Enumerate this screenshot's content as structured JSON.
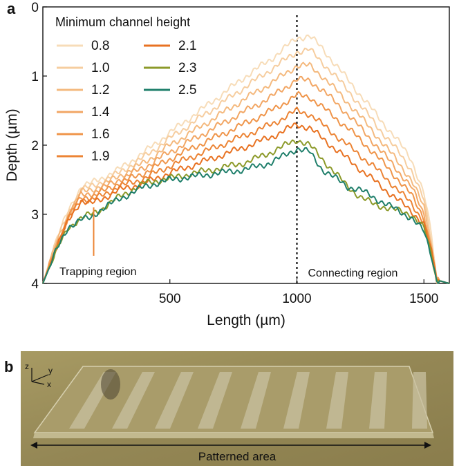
{
  "panel_a": {
    "letter": "a"
  },
  "panel_b": {
    "letter": "b",
    "caption": "Patterned area",
    "axes": {
      "z": "z",
      "y": "y",
      "x": "x"
    }
  },
  "chart_data": {
    "type": "line",
    "title": "",
    "xlabel": "Length (µm)",
    "ylabel": "Depth (µm)",
    "xlim": [
      0,
      1600
    ],
    "ylim": [
      4,
      0
    ],
    "y_inverted": true,
    "x_ticks": [
      500,
      1000,
      1500
    ],
    "y_ticks": [
      0,
      1,
      2,
      3,
      4
    ],
    "legend_title": "Minimum channel height",
    "divider_x": 1000,
    "region_labels": {
      "left": "Trapping region",
      "right": "Connecting region"
    },
    "series": [
      {
        "name": "0.8",
        "color": "#f7dcb8",
        "points": [
          [
            0,
            4.0
          ],
          [
            50,
            3.4
          ],
          [
            100,
            2.95
          ],
          [
            150,
            2.6
          ],
          [
            190,
            2.55
          ],
          [
            220,
            2.5
          ],
          [
            300,
            2.35
          ],
          [
            400,
            2.1
          ],
          [
            500,
            1.82
          ],
          [
            600,
            1.55
          ],
          [
            700,
            1.28
          ],
          [
            800,
            1.0
          ],
          [
            900,
            0.75
          ],
          [
            1000,
            0.45
          ],
          [
            1050,
            0.42
          ],
          [
            1100,
            0.6
          ],
          [
            1200,
            1.05
          ],
          [
            1300,
            1.5
          ],
          [
            1400,
            1.95
          ],
          [
            1450,
            2.2
          ],
          [
            1500,
            2.7
          ],
          [
            1530,
            3.3
          ],
          [
            1550,
            3.95
          ],
          [
            1600,
            4.0
          ]
        ]
      },
      {
        "name": "1.0",
        "color": "#f6cd9f",
        "points": [
          [
            0,
            4.0
          ],
          [
            50,
            3.42
          ],
          [
            100,
            2.98
          ],
          [
            150,
            2.65
          ],
          [
            190,
            2.6
          ],
          [
            220,
            2.55
          ],
          [
            300,
            2.4
          ],
          [
            400,
            2.17
          ],
          [
            500,
            1.9
          ],
          [
            600,
            1.65
          ],
          [
            700,
            1.4
          ],
          [
            800,
            1.15
          ],
          [
            900,
            0.9
          ],
          [
            1000,
            0.65
          ],
          [
            1050,
            0.62
          ],
          [
            1100,
            0.8
          ],
          [
            1200,
            1.2
          ],
          [
            1300,
            1.65
          ],
          [
            1400,
            2.1
          ],
          [
            1450,
            2.35
          ],
          [
            1500,
            2.8
          ],
          [
            1530,
            3.4
          ],
          [
            1550,
            3.95
          ],
          [
            1600,
            4.0
          ]
        ]
      },
      {
        "name": "1.2",
        "color": "#f4b97e",
        "points": [
          [
            0,
            4.0
          ],
          [
            50,
            3.45
          ],
          [
            100,
            3.0
          ],
          [
            150,
            2.68
          ],
          [
            190,
            2.65
          ],
          [
            220,
            2.6
          ],
          [
            300,
            2.45
          ],
          [
            400,
            2.25
          ],
          [
            500,
            2.0
          ],
          [
            600,
            1.78
          ],
          [
            700,
            1.55
          ],
          [
            800,
            1.32
          ],
          [
            900,
            1.1
          ],
          [
            1000,
            0.85
          ],
          [
            1050,
            0.85
          ],
          [
            1100,
            1.0
          ],
          [
            1200,
            1.38
          ],
          [
            1300,
            1.8
          ],
          [
            1400,
            2.25
          ],
          [
            1450,
            2.5
          ],
          [
            1500,
            2.9
          ],
          [
            1530,
            3.45
          ],
          [
            1550,
            3.95
          ],
          [
            1600,
            4.0
          ]
        ]
      },
      {
        "name": "1.4",
        "color": "#f2a664",
        "points": [
          [
            0,
            4.0
          ],
          [
            50,
            3.48
          ],
          [
            100,
            3.02
          ],
          [
            150,
            2.72
          ],
          [
            190,
            2.7
          ],
          [
            220,
            2.65
          ],
          [
            300,
            2.5
          ],
          [
            400,
            2.32
          ],
          [
            500,
            2.1
          ],
          [
            600,
            1.9
          ],
          [
            700,
            1.7
          ],
          [
            800,
            1.5
          ],
          [
            900,
            1.3
          ],
          [
            1000,
            1.05
          ],
          [
            1050,
            1.07
          ],
          [
            1100,
            1.2
          ],
          [
            1200,
            1.55
          ],
          [
            1300,
            1.95
          ],
          [
            1400,
            2.38
          ],
          [
            1450,
            2.6
          ],
          [
            1500,
            3.0
          ],
          [
            1530,
            3.5
          ],
          [
            1550,
            3.95
          ],
          [
            1600,
            4.0
          ]
        ]
      },
      {
        "name": "1.6",
        "color": "#ef9449",
        "points": [
          [
            0,
            4.0
          ],
          [
            50,
            3.5
          ],
          [
            100,
            3.05
          ],
          [
            150,
            2.75
          ],
          [
            190,
            2.75
          ],
          [
            220,
            2.7
          ],
          [
            300,
            2.55
          ],
          [
            400,
            2.4
          ],
          [
            500,
            2.2
          ],
          [
            600,
            2.02
          ],
          [
            700,
            1.85
          ],
          [
            800,
            1.68
          ],
          [
            900,
            1.5
          ],
          [
            1000,
            1.28
          ],
          [
            1050,
            1.3
          ],
          [
            1100,
            1.45
          ],
          [
            1200,
            1.75
          ],
          [
            1300,
            2.1
          ],
          [
            1400,
            2.5
          ],
          [
            1450,
            2.72
          ],
          [
            1500,
            3.05
          ],
          [
            1530,
            3.5
          ],
          [
            1550,
            3.95
          ],
          [
            1600,
            4.0
          ]
        ]
      },
      {
        "name": "1.9",
        "color": "#ec8435",
        "points": [
          [
            0,
            4.0
          ],
          [
            50,
            3.5
          ],
          [
            100,
            3.08
          ],
          [
            150,
            2.78
          ],
          [
            190,
            2.8
          ],
          [
            220,
            2.75
          ],
          [
            300,
            2.6
          ],
          [
            400,
            2.48
          ],
          [
            500,
            2.3
          ],
          [
            600,
            2.15
          ],
          [
            700,
            2.0
          ],
          [
            800,
            1.85
          ],
          [
            900,
            1.7
          ],
          [
            1000,
            1.5
          ],
          [
            1050,
            1.55
          ],
          [
            1100,
            1.7
          ],
          [
            1200,
            2.0
          ],
          [
            1300,
            2.3
          ],
          [
            1400,
            2.65
          ],
          [
            1450,
            2.85
          ],
          [
            1500,
            3.1
          ],
          [
            1530,
            3.55
          ],
          [
            1550,
            3.95
          ],
          [
            1600,
            4.0
          ]
        ]
      },
      {
        "name": "2.1",
        "color": "#e87222",
        "points": [
          [
            0,
            4.0
          ],
          [
            50,
            3.5
          ],
          [
            100,
            3.1
          ],
          [
            150,
            2.8
          ],
          [
            190,
            2.85
          ],
          [
            220,
            2.8
          ],
          [
            300,
            2.65
          ],
          [
            400,
            2.55
          ],
          [
            500,
            2.4
          ],
          [
            600,
            2.28
          ],
          [
            700,
            2.15
          ],
          [
            800,
            2.02
          ],
          [
            900,
            1.88
          ],
          [
            1000,
            1.7
          ],
          [
            1050,
            1.75
          ],
          [
            1100,
            1.9
          ],
          [
            1200,
            2.2
          ],
          [
            1300,
            2.5
          ],
          [
            1400,
            2.8
          ],
          [
            1450,
            2.95
          ],
          [
            1500,
            3.15
          ],
          [
            1530,
            3.55
          ],
          [
            1550,
            3.95
          ],
          [
            1600,
            4.0
          ]
        ]
      },
      {
        "name": "2.3",
        "color": "#8c9a2a",
        "points": [
          [
            0,
            4.0
          ],
          [
            50,
            3.55
          ],
          [
            100,
            3.2
          ],
          [
            150,
            3.05
          ],
          [
            190,
            3.0
          ],
          [
            220,
            2.95
          ],
          [
            300,
            2.75
          ],
          [
            400,
            2.55
          ],
          [
            500,
            2.48
          ],
          [
            600,
            2.4
          ],
          [
            700,
            2.33
          ],
          [
            800,
            2.25
          ],
          [
            900,
            2.1
          ],
          [
            1000,
            1.92
          ],
          [
            1050,
            2.0
          ],
          [
            1100,
            2.2
          ],
          [
            1200,
            2.6
          ],
          [
            1250,
            2.75
          ],
          [
            1300,
            2.85
          ],
          [
            1400,
            2.95
          ],
          [
            1450,
            3.0
          ],
          [
            1500,
            3.2
          ],
          [
            1530,
            3.6
          ],
          [
            1550,
            3.95
          ],
          [
            1600,
            4.0
          ]
        ]
      },
      {
        "name": "2.5",
        "color": "#1f7f6b",
        "points": [
          [
            0,
            4.0
          ],
          [
            50,
            3.55
          ],
          [
            100,
            3.18
          ],
          [
            150,
            3.08
          ],
          [
            190,
            3.05
          ],
          [
            220,
            2.95
          ],
          [
            300,
            2.78
          ],
          [
            400,
            2.6
          ],
          [
            500,
            2.5
          ],
          [
            600,
            2.45
          ],
          [
            700,
            2.4
          ],
          [
            800,
            2.35
          ],
          [
            900,
            2.25
          ],
          [
            1000,
            2.05
          ],
          [
            1050,
            2.1
          ],
          [
            1100,
            2.35
          ],
          [
            1200,
            2.6
          ],
          [
            1250,
            2.65
          ],
          [
            1300,
            2.75
          ],
          [
            1400,
            2.95
          ],
          [
            1450,
            3.05
          ],
          [
            1500,
            3.25
          ],
          [
            1530,
            3.6
          ],
          [
            1550,
            3.95
          ],
          [
            1600,
            4.0
          ]
        ]
      }
    ]
  }
}
